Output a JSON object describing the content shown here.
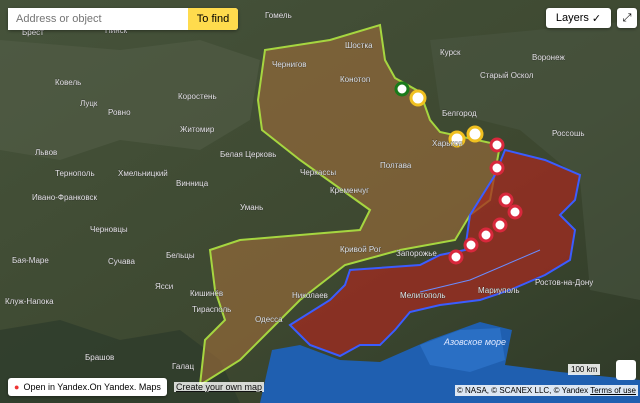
{
  "search": {
    "placeholder": "Address or object",
    "button": "To find"
  },
  "layers": {
    "label": "Layers"
  },
  "map": {
    "sea_label": "Азовское море",
    "cities": [
      "Гомель",
      "Брест",
      "Пинск",
      "Шостка",
      "Чернигов",
      "Конотоп",
      "Курск",
      "Старый Оскол",
      "Воронеж",
      "Ковель",
      "Луцк",
      "Ровно",
      "Коростень",
      "Житомир",
      "Белгород",
      "Россошь",
      "Львов",
      "Тернополь",
      "Хмельницкий",
      "Белая Церковь",
      "Черкассы",
      "Полтава",
      "Харьков",
      "Винница",
      "Умань",
      "Кременчуг",
      "Ивано-Франковск",
      "Черновцы",
      "Кривой Рог",
      "Запорожье",
      "Бая-Маре",
      "Сучава",
      "Бельцы",
      "Ясси",
      "Кишинёв",
      "Клуж-Напока",
      "Николаев",
      "Тирасполь",
      "Одесса",
      "Мелитополь",
      "Мариуполь",
      "Ростов-на-Дону",
      "Брашов",
      "Галац"
    ]
  },
  "footer": {
    "open_link": "Open in Yandex.On Yandex. Maps",
    "create_link": "Create your own map"
  },
  "scale": {
    "label": "100 km"
  },
  "copyright": {
    "text": "© NASA, © SCANEX LLC, © Yandex",
    "terms": "Terms of use"
  }
}
